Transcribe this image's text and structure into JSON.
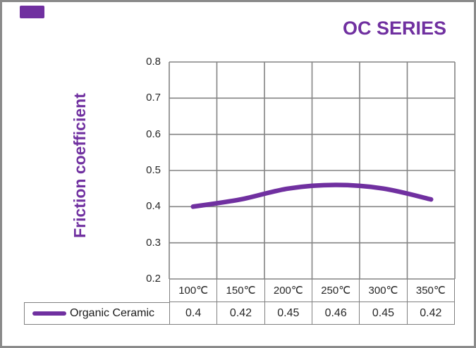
{
  "title": "OC SERIES",
  "logo": {
    "shape": "rounded-rectangle",
    "color": "#7030A0"
  },
  "chart_data": {
    "type": "line",
    "title": "OC SERIES",
    "categories": [
      "100℃",
      "150℃",
      "200℃",
      "250℃",
      "300℃",
      "350℃"
    ],
    "series": [
      {
        "name": "Organic Ceramic",
        "color": "#7030A0",
        "values": [
          0.4,
          0.42,
          0.45,
          0.46,
          0.45,
          0.42
        ]
      }
    ],
    "xlabel": "",
    "ylabel": "Friction coefficient",
    "yticks": [
      "0.8",
      "0.7",
      "0.6",
      "0.5",
      "0.4",
      "0.3",
      "0.2"
    ],
    "ylim": [
      0.2,
      0.8
    ],
    "grid": true,
    "line_style": "smooth",
    "markers": false,
    "legend_position": "bottom-table-left"
  },
  "colors": {
    "accent_purple": "#7030A0",
    "grid_line": "#848484",
    "frame_border": "#8a8a8a",
    "tick_text": "#262626",
    "background": "#ffffff"
  }
}
